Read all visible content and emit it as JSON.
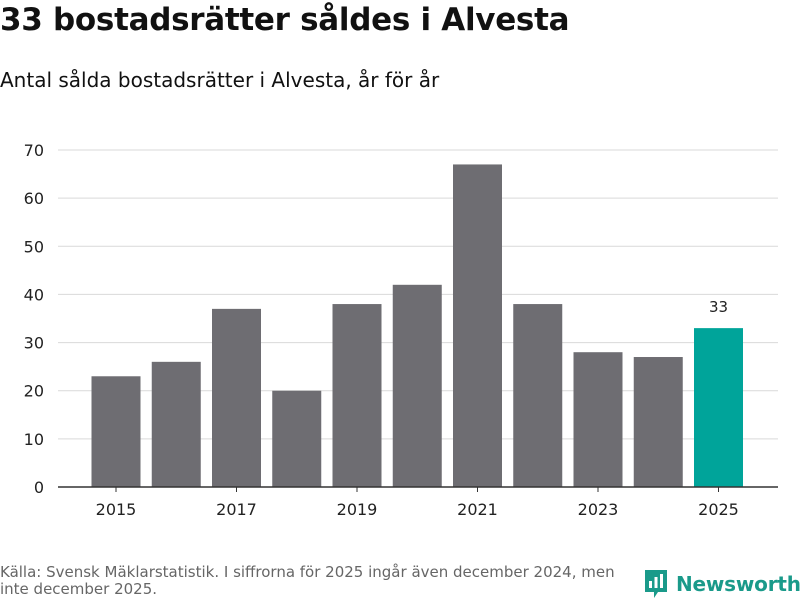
{
  "header": {
    "title": "33 bostadsrätter såldes i Alvesta",
    "subtitle": "Antal sålda bostadsrätter i Alvesta, år för år"
  },
  "footer": {
    "source": "Källa: Svensk Mäklarstatistik. I siffrorna för 2025 ingår även december 2024, men inte december 2025.",
    "brand": "Newsworthy",
    "brand_icon": "newsworthy-logo-icon"
  },
  "colors": {
    "bar": "#6e6d72",
    "highlight": "#00a49a",
    "grid": "#d9d9d9",
    "axis": "#333333",
    "brand": "#1a9a8a"
  },
  "chart_data": {
    "type": "bar",
    "title": "Antal sålda bostadsrätter i Alvesta, år för år",
    "xlabel": "",
    "ylabel": "",
    "categories": [
      "2015",
      "2016",
      "2017",
      "2018",
      "2019",
      "2020",
      "2021",
      "2022",
      "2023",
      "2024",
      "2025"
    ],
    "values": [
      23,
      26,
      37,
      20,
      38,
      42,
      67,
      38,
      28,
      27,
      33
    ],
    "x_tick_labels": [
      "2015",
      "",
      "2017",
      "",
      "2019",
      "",
      "2021",
      "",
      "2023",
      "",
      "2025"
    ],
    "yticks": [
      0,
      10,
      20,
      30,
      40,
      50,
      60,
      70
    ],
    "ylim": [
      0,
      70
    ],
    "grid": true,
    "highlight_index": 10,
    "data_labels": [
      {
        "index": 10,
        "text": "33"
      }
    ]
  }
}
